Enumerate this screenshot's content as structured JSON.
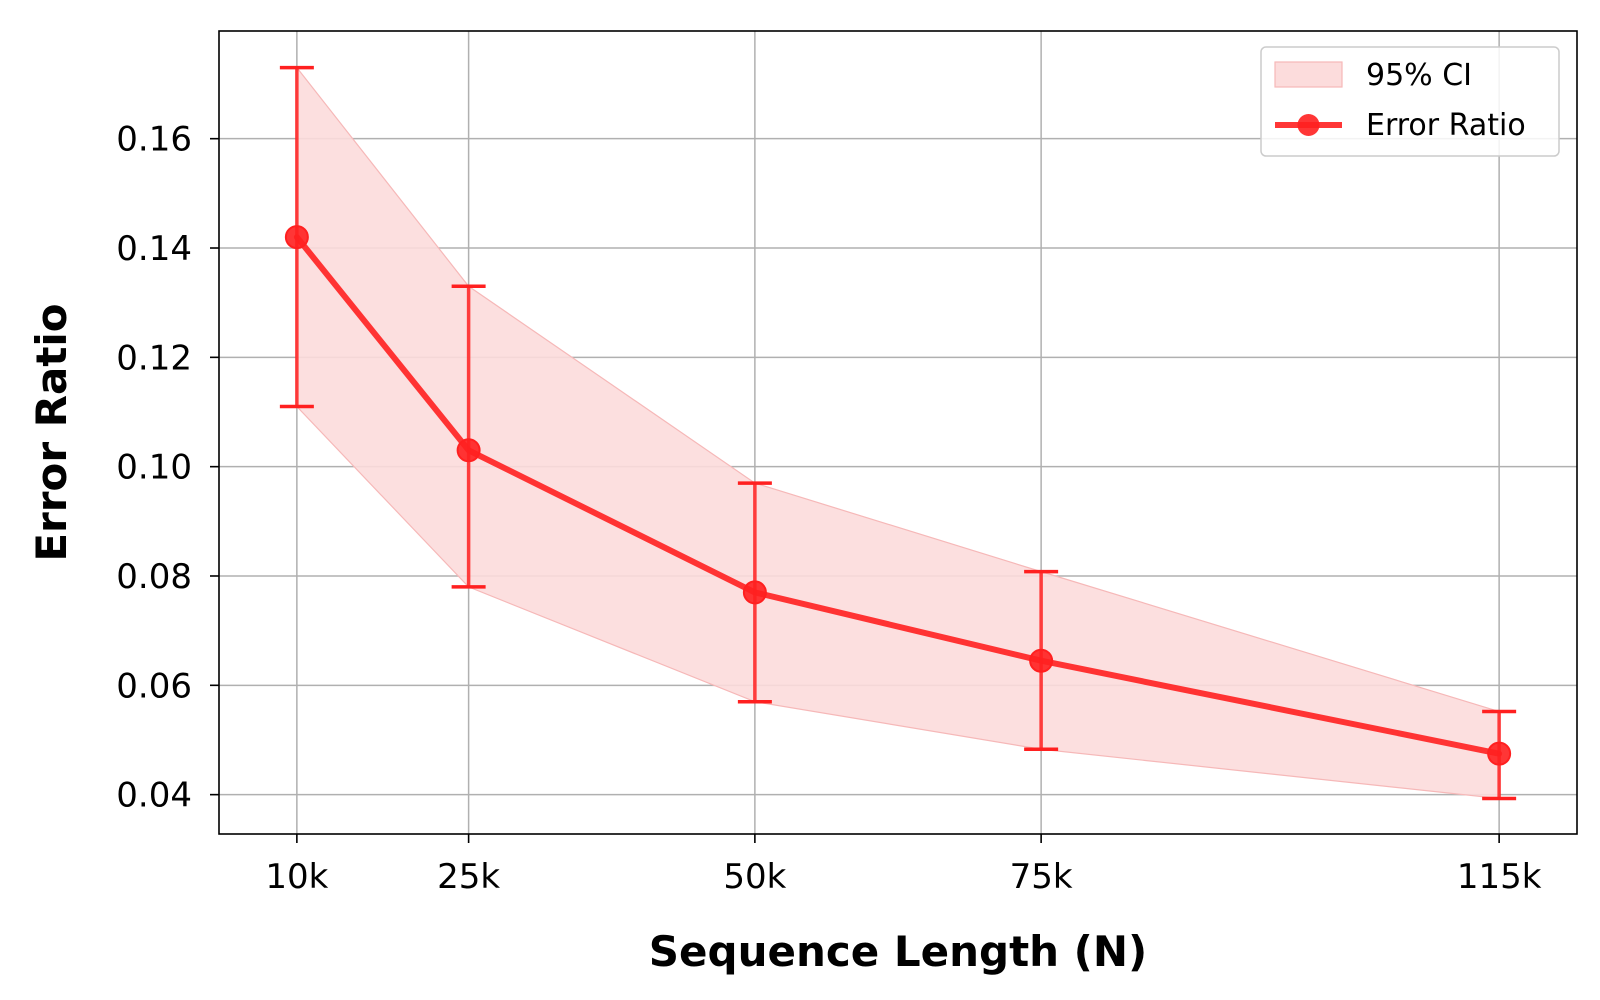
{
  "chart_data": {
    "type": "line",
    "title": "",
    "xlabel": "Sequence Length (N)",
    "ylabel": "Error Ratio",
    "categories": [
      "10k",
      "25k",
      "50k",
      "75k",
      "115k"
    ],
    "x": [
      10000,
      25000,
      50000,
      75000,
      115000
    ],
    "xlim": [
      3200,
      121800
    ],
    "ylim": [
      0.0328,
      0.1797
    ],
    "yticks": [
      0.04,
      0.06,
      0.08,
      0.1,
      0.12,
      0.14,
      0.16
    ],
    "ytick_labels": [
      "0.04",
      "0.06",
      "0.08",
      "0.10",
      "0.12",
      "0.14",
      "0.16"
    ],
    "grid": true,
    "legend_position": "top-right",
    "series": [
      {
        "name": "Error Ratio",
        "values": [
          0.142,
          0.103,
          0.077,
          0.0645,
          0.0475
        ],
        "error_low": [
          0.111,
          0.078,
          0.057,
          0.0483,
          0.0393
        ],
        "error_high": [
          0.173,
          0.133,
          0.097,
          0.0808,
          0.0552
        ],
        "color": "#ff2020"
      }
    ],
    "band": {
      "name": "95% CI",
      "lower": [
        0.111,
        0.078,
        0.057,
        0.0483,
        0.0393
      ],
      "upper": [
        0.173,
        0.133,
        0.097,
        0.0808,
        0.0552
      ],
      "color": "#fcdcdc"
    }
  }
}
